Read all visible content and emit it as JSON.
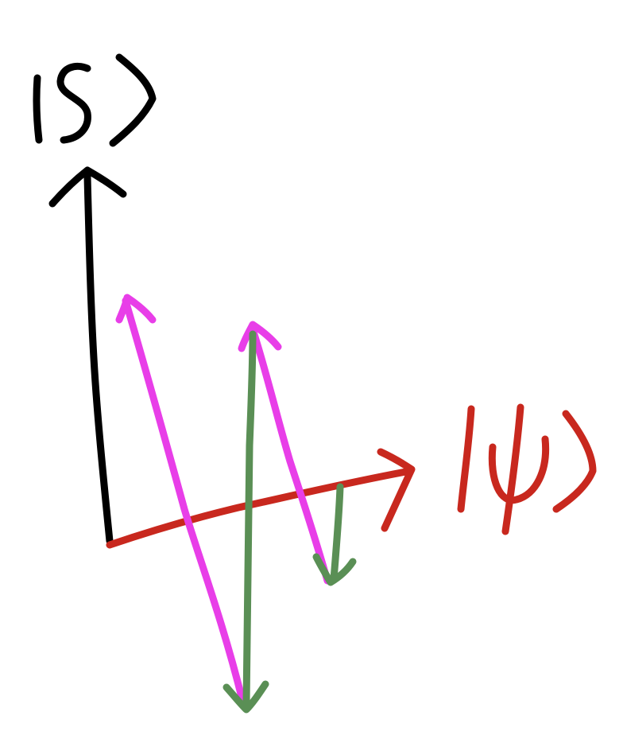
{
  "diagram": {
    "labels": {
      "s_axis": "|s⟩",
      "psi_axis": "|ψ⟩"
    },
    "colors": {
      "background": "#ffffff",
      "s_axis": "#000000",
      "psi_axis": "#c8281e",
      "reflection": "#e83ee8",
      "projection": "#5a8f55"
    },
    "elements": [
      "s-axis-arrow",
      "psi-axis-arrow",
      "magenta-arrow-long-up",
      "magenta-arrow-middle-up",
      "magenta-arrow-short-down",
      "green-arrow-long-down",
      "green-arrow-short-down"
    ]
  }
}
